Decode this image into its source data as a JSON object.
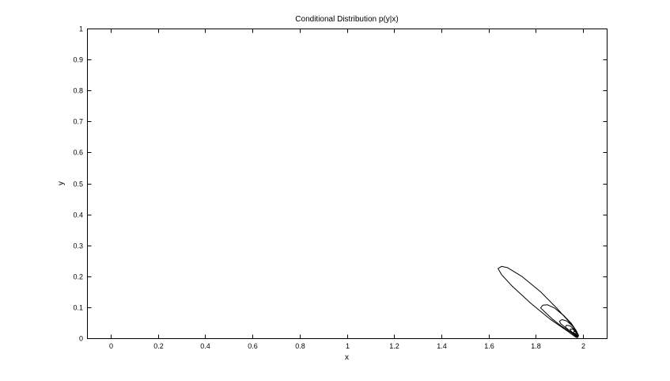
{
  "chart_data": {
    "type": "contour",
    "title": "Conditional Distribution p(y|x)",
    "xlabel": "x",
    "ylabel": "y",
    "xlim": [
      -0.1,
      2.1
    ],
    "ylim": [
      0,
      1
    ],
    "xticks": [
      0,
      0.2,
      0.4,
      0.6,
      0.8,
      1,
      1.2,
      1.4,
      1.6,
      1.8,
      2
    ],
    "xtick_labels": [
      "0",
      "0.2",
      "0.4",
      "0.6",
      "0.8",
      "1",
      "1.2",
      "1.4",
      "1.6",
      "1.8",
      "2"
    ],
    "yticks": [
      0,
      0.1,
      0.2,
      0.3,
      0.4,
      0.5,
      0.6,
      0.7,
      0.8,
      0.9,
      1
    ],
    "ytick_labels": [
      "0",
      "0.1",
      "0.2",
      "0.3",
      "0.4",
      "0.5",
      "0.6",
      "0.7",
      "0.8",
      "0.9",
      "1"
    ],
    "grid": false,
    "line_color": "#000000",
    "contours": [
      {
        "points": [
          [
            1.97,
            0.003
          ],
          [
            1.93,
            0.025
          ],
          [
            1.86,
            0.062
          ],
          [
            1.78,
            0.112
          ],
          [
            1.7,
            0.168
          ],
          [
            1.655,
            0.205
          ],
          [
            1.64,
            0.225
          ],
          [
            1.655,
            0.232
          ],
          [
            1.68,
            0.228
          ],
          [
            1.74,
            0.2
          ],
          [
            1.82,
            0.15
          ],
          [
            1.89,
            0.096
          ],
          [
            1.94,
            0.054
          ],
          [
            1.97,
            0.025
          ],
          [
            1.98,
            0.008
          ],
          [
            1.975,
            0.002
          ]
        ]
      },
      {
        "points": [
          [
            1.975,
            0.003
          ],
          [
            1.95,
            0.018
          ],
          [
            1.91,
            0.038
          ],
          [
            1.87,
            0.062
          ],
          [
            1.84,
            0.083
          ],
          [
            1.82,
            0.098
          ],
          [
            1.83,
            0.107
          ],
          [
            1.85,
            0.108
          ],
          [
            1.88,
            0.097
          ],
          [
            1.92,
            0.072
          ],
          [
            1.95,
            0.048
          ],
          [
            1.97,
            0.025
          ],
          [
            1.98,
            0.01
          ],
          [
            1.978,
            0.003
          ]
        ]
      },
      {
        "points": [
          [
            1.975,
            0.004
          ],
          [
            1.955,
            0.016
          ],
          [
            1.93,
            0.032
          ],
          [
            1.905,
            0.047
          ],
          [
            1.9,
            0.055
          ],
          [
            1.91,
            0.06
          ],
          [
            1.93,
            0.056
          ],
          [
            1.955,
            0.04
          ],
          [
            1.972,
            0.022
          ],
          [
            1.98,
            0.009
          ],
          [
            1.978,
            0.004
          ]
        ]
      },
      {
        "points": [
          [
            1.975,
            0.005
          ],
          [
            1.96,
            0.014
          ],
          [
            1.94,
            0.026
          ],
          [
            1.925,
            0.036
          ],
          [
            1.93,
            0.042
          ],
          [
            1.945,
            0.04
          ],
          [
            1.963,
            0.028
          ],
          [
            1.976,
            0.015
          ],
          [
            1.979,
            0.007
          ],
          [
            1.977,
            0.005
          ]
        ]
      },
      {
        "points": [
          [
            1.976,
            0.006
          ],
          [
            1.965,
            0.013
          ],
          [
            1.95,
            0.022
          ],
          [
            1.945,
            0.029
          ],
          [
            1.955,
            0.03
          ],
          [
            1.968,
            0.021
          ],
          [
            1.978,
            0.011
          ],
          [
            1.978,
            0.006
          ]
        ]
      },
      {
        "points": [
          [
            1.977,
            0.007
          ],
          [
            1.968,
            0.012
          ],
          [
            1.96,
            0.019
          ],
          [
            1.963,
            0.023
          ],
          [
            1.972,
            0.018
          ],
          [
            1.979,
            0.01
          ],
          [
            1.978,
            0.007
          ]
        ]
      },
      {
        "points": [
          [
            1.978,
            0.008
          ],
          [
            1.971,
            0.012
          ],
          [
            1.968,
            0.016
          ],
          [
            1.974,
            0.016
          ],
          [
            1.98,
            0.01
          ],
          [
            1.979,
            0.008
          ]
        ]
      }
    ]
  }
}
